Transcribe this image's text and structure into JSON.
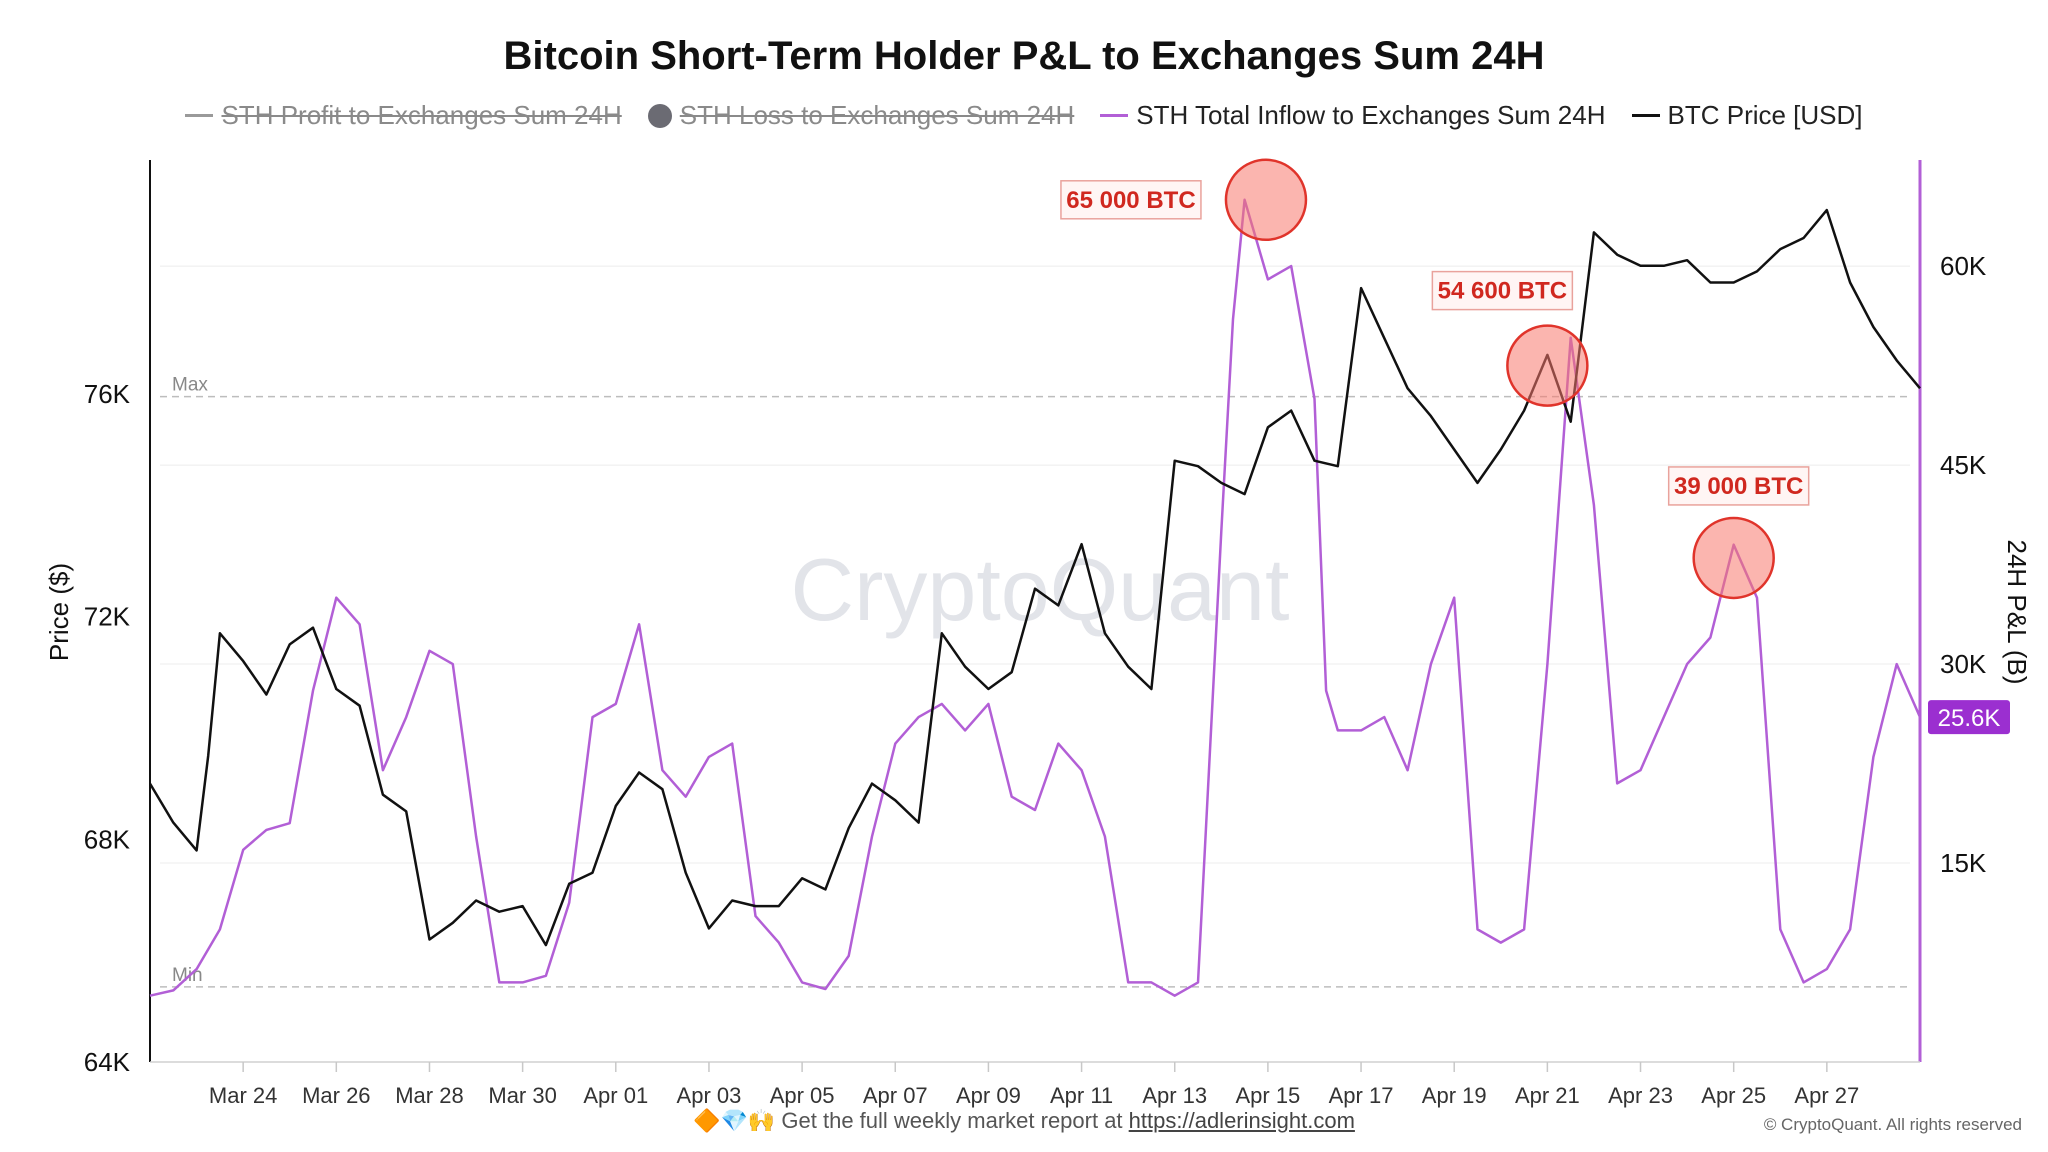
{
  "chart_data": {
    "type": "line",
    "title": "Bitcoin Short-Term Holder P&L to Exchanges Sum 24H",
    "legend": [
      {
        "name": "STH Profit to Exchanges Sum 24H",
        "color": "#9a9a9a",
        "marker": "line",
        "disabled": true
      },
      {
        "name": "STH Loss to Exchanges Sum 24H",
        "color": "#6b6b73",
        "marker": "dot",
        "disabled": true
      },
      {
        "name": "STH Total Inflow to  Exchanges Sum 24H",
        "color": "#b25fd6",
        "marker": "line",
        "disabled": false
      },
      {
        "name": "BTC Price [USD]",
        "color": "#111111",
        "marker": "line",
        "disabled": false
      }
    ],
    "legend_position": "top-center",
    "x_ticks": [
      "Mar 24",
      "Mar 26",
      "Mar 28",
      "Mar 30",
      "Apr 01",
      "Apr 03",
      "Apr 05",
      "Apr 07",
      "Apr 09",
      "Apr 11",
      "Apr 13",
      "Apr 15",
      "Apr 17",
      "Apr 19",
      "Apr 21",
      "Apr 23",
      "Apr 25",
      "Apr 27"
    ],
    "x_range": [
      "2025-03-22",
      "2025-04-29"
    ],
    "y_left": {
      "label": "Price ($)",
      "ticks": [
        64000,
        68000,
        72000,
        76000
      ],
      "tick_labels": [
        "64K",
        "68K",
        "72K",
        "76K"
      ],
      "range": [
        64000,
        80200
      ]
    },
    "y_right": {
      "label": "24H P&L (B)",
      "ticks": [
        15000,
        30000,
        45000,
        60000
      ],
      "tick_labels": [
        "15K",
        "30K",
        "45K",
        "60K"
      ],
      "range": [
        0,
        68000
      ]
    },
    "reference_lines": [
      {
        "label": "Max",
        "value": 75950,
        "axis": "left"
      },
      {
        "label": "Min",
        "value": 65350,
        "axis": "left"
      }
    ],
    "grid": "horizontal",
    "price_series": {
      "name": "BTC Price [USD]",
      "color": "#111111",
      "x": [
        "2025-03-22",
        "2025-03-22T12",
        "2025-03-23",
        "2025-03-23T06",
        "2025-03-23T12",
        "2025-03-24",
        "2025-03-24T12",
        "2025-03-25",
        "2025-03-25T12",
        "2025-03-26",
        "2025-03-26T12",
        "2025-03-27",
        "2025-03-27T12",
        "2025-03-28",
        "2025-03-28T12",
        "2025-03-29",
        "2025-03-29T12",
        "2025-03-30",
        "2025-03-30T12",
        "2025-03-31",
        "2025-03-31T12",
        "2025-04-01",
        "2025-04-01T12",
        "2025-04-02",
        "2025-04-02T12",
        "2025-04-03",
        "2025-04-03T12",
        "2025-04-04",
        "2025-04-04T12",
        "2025-04-05",
        "2025-04-05T12",
        "2025-04-06",
        "2025-04-06T12",
        "2025-04-07",
        "2025-04-07T12",
        "2025-04-08",
        "2025-04-08T12",
        "2025-04-09",
        "2025-04-09T12",
        "2025-04-10",
        "2025-04-10T12",
        "2025-04-11",
        "2025-04-11T12",
        "2025-04-12",
        "2025-04-12T12",
        "2025-04-13",
        "2025-04-13T12",
        "2025-04-14",
        "2025-04-14T12",
        "2025-04-15",
        "2025-04-15T12",
        "2025-04-16",
        "2025-04-16T12",
        "2025-04-17",
        "2025-04-17T12",
        "2025-04-18",
        "2025-04-18T12",
        "2025-04-19",
        "2025-04-19T12",
        "2025-04-20",
        "2025-04-20T12",
        "2025-04-21",
        "2025-04-21T12",
        "2025-04-22",
        "2025-04-22T12",
        "2025-04-23",
        "2025-04-23T12",
        "2025-04-24",
        "2025-04-24T12",
        "2025-04-25",
        "2025-04-25T12",
        "2025-04-26",
        "2025-04-26T12",
        "2025-04-27",
        "2025-04-27T12",
        "2025-04-28",
        "2025-04-28T12",
        "2025-04-29"
      ],
      "y": [
        69000,
        68300,
        67800,
        69500,
        71700,
        71200,
        70600,
        71500,
        71800,
        70700,
        70400,
        68800,
        68500,
        66200,
        66500,
        66900,
        66700,
        66800,
        66100,
        67200,
        67400,
        68600,
        69200,
        68900,
        67400,
        66400,
        66900,
        66800,
        66800,
        67300,
        67100,
        68200,
        69000,
        68700,
        68300,
        71700,
        71100,
        70700,
        71000,
        72500,
        72200,
        73300,
        71700,
        71100,
        70700,
        74800,
        74700,
        74400,
        74200,
        75400,
        75700,
        74800,
        74700,
        77900,
        77000,
        76100,
        75600,
        75000,
        74400,
        75000,
        75700,
        76700,
        75500,
        78900,
        78500,
        78300,
        78300,
        78400,
        78000,
        78000,
        78200,
        78600,
        78800,
        79300,
        78000,
        77200,
        76600,
        76100
      ]
    },
    "inflow_series": {
      "name": "STH Total Inflow to  Exchanges Sum 24H",
      "color": "#b25fd6",
      "x": [
        "2025-03-22",
        "2025-03-22T12",
        "2025-03-23",
        "2025-03-23T12",
        "2025-03-24",
        "2025-03-24T12",
        "2025-03-25",
        "2025-03-25T12",
        "2025-03-26",
        "2025-03-26T12",
        "2025-03-27",
        "2025-03-27T12",
        "2025-03-28",
        "2025-03-28T12",
        "2025-03-29",
        "2025-03-29T12",
        "2025-03-30",
        "2025-03-30T12",
        "2025-03-31",
        "2025-03-31T12",
        "2025-04-01",
        "2025-04-01T12",
        "2025-04-02",
        "2025-04-02T12",
        "2025-04-03",
        "2025-04-03T12",
        "2025-04-04",
        "2025-04-04T12",
        "2025-04-05",
        "2025-04-05T12",
        "2025-04-06",
        "2025-04-06T12",
        "2025-04-07",
        "2025-04-07T12",
        "2025-04-08",
        "2025-04-08T12",
        "2025-04-09",
        "2025-04-09T12",
        "2025-04-10",
        "2025-04-10T12",
        "2025-04-11",
        "2025-04-11T12",
        "2025-04-12",
        "2025-04-12T12",
        "2025-04-13",
        "2025-04-13T12",
        "2025-04-14",
        "2025-04-14T06",
        "2025-04-14T12",
        "2025-04-14T18",
        "2025-04-15",
        "2025-04-15T12",
        "2025-04-16",
        "2025-04-16T06",
        "2025-04-16T12",
        "2025-04-17",
        "2025-04-17T12",
        "2025-04-18",
        "2025-04-18T12",
        "2025-04-19",
        "2025-04-19T12",
        "2025-04-20",
        "2025-04-20T12",
        "2025-04-21",
        "2025-04-21T12",
        "2025-04-22",
        "2025-04-22T12",
        "2025-04-23",
        "2025-04-23T12",
        "2025-04-24",
        "2025-04-24T12",
        "2025-04-25",
        "2025-04-25T12",
        "2025-04-26",
        "2025-04-26T12",
        "2025-04-27",
        "2025-04-27T12",
        "2025-04-28",
        "2025-04-28T12",
        "2025-04-29"
      ],
      "y": [
        5000,
        5400,
        7000,
        10000,
        16000,
        17500,
        18000,
        28000,
        35000,
        33000,
        22000,
        26000,
        31000,
        30000,
        17000,
        6000,
        6000,
        6500,
        12000,
        26000,
        27000,
        33000,
        22000,
        20000,
        23000,
        24000,
        11000,
        9000,
        6000,
        5500,
        8000,
        17000,
        24000,
        26000,
        27000,
        25000,
        27000,
        20000,
        19000,
        24000,
        22000,
        17000,
        6000,
        6000,
        5000,
        6000,
        40000,
        56000,
        65000,
        62000,
        59000,
        60000,
        50000,
        28000,
        25000,
        25000,
        26000,
        22000,
        30000,
        35000,
        10000,
        9000,
        10000,
        30000,
        54600,
        42000,
        21000,
        22000,
        26000,
        30000,
        32000,
        39000,
        35000,
        10000,
        6000,
        7000,
        10000,
        23000,
        30000,
        26000
      ]
    },
    "annotations": [
      {
        "text": "65 000 BTC",
        "x": "2025-04-14T23",
        "y": 65000,
        "axis": "right"
      },
      {
        "text": "54 600 BTC",
        "x": "2025-04-21",
        "y": 52500,
        "axis": "right"
      },
      {
        "text": "39 000 BTC",
        "x": "2025-04-25",
        "y": 38000,
        "axis": "right"
      }
    ],
    "last_value_badge": {
      "text": "25.6K",
      "color": "#9b2fd0"
    },
    "watermark": "CryptoQuant"
  },
  "footer": {
    "emoji": "🔶💎🙌",
    "text": "Get the full weekly market report at",
    "link": "https://adlerinsight.com"
  },
  "copyright": "© CryptoQuant. All rights reserved"
}
